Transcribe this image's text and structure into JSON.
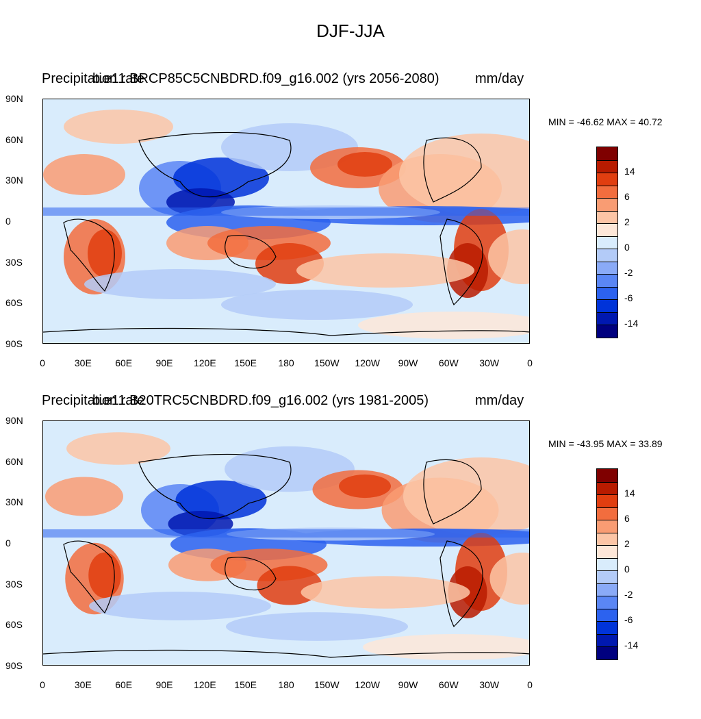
{
  "title": "DJF-JJA",
  "colors": {
    "ocean_base": "#d9ecfc",
    "scale": [
      "#00007f",
      "#0018b0",
      "#0033d9",
      "#2c62ef",
      "#5a86f5",
      "#8aaaf7",
      "#b3cbf8",
      "#d9ecfc",
      "#fde7d8",
      "#fcc5a6",
      "#f99c73",
      "#f26d3e",
      "#e13e10",
      "#b81b00",
      "#7f0000"
    ]
  },
  "panels": [
    {
      "label_left": "Precipitation rate",
      "label_center": "b.e11.BRCP85C5CNBDRD.f09_g16.002 (yrs 2056-2080)",
      "label_right": "mm/day",
      "minmax": "MIN = -46.62 MAX =  40.72",
      "lat_ticks": [
        "90N",
        "60N",
        "30N",
        "0",
        "30S",
        "60S",
        "90S"
      ],
      "lon_ticks": [
        "0",
        "30E",
        "60E",
        "90E",
        "120E",
        "150E",
        "180",
        "150W",
        "120W",
        "90W",
        "60W",
        "30W",
        "0"
      ],
      "colorbar_labels": [
        "14",
        "6",
        "2",
        "0",
        "-2",
        "-6",
        "-14"
      ]
    },
    {
      "label_left": "Precipitation rate",
      "label_center": "b.e11.B20TRC5CNBDRD.f09_g16.002 (yrs 1981-2005)",
      "label_right": "mm/day",
      "minmax": "MIN = -43.95 MAX =  33.89",
      "lat_ticks": [
        "90N",
        "60N",
        "30N",
        "0",
        "30S",
        "60S",
        "90S"
      ],
      "lon_ticks": [
        "0",
        "30E",
        "60E",
        "90E",
        "120E",
        "150E",
        "180",
        "150W",
        "120W",
        "90W",
        "60W",
        "30W",
        "0"
      ],
      "colorbar_labels": [
        "14",
        "6",
        "2",
        "0",
        "-2",
        "-6",
        "-14"
      ]
    }
  ]
}
